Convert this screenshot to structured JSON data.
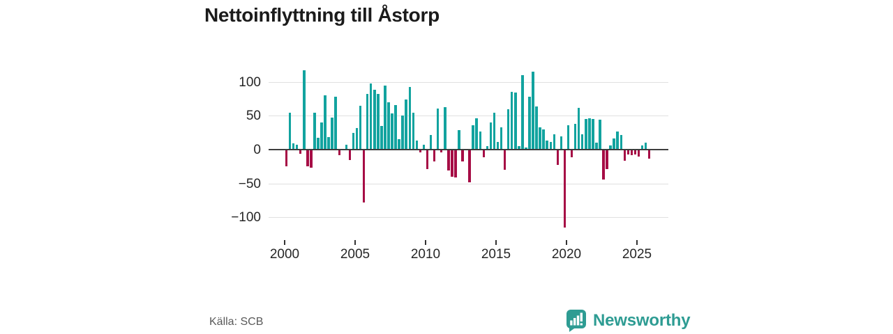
{
  "title": "Nettoinflyttning till Åstorp",
  "source": "Källa: SCB",
  "brand": {
    "name": "Newsworthy",
    "color": "#2e9c93"
  },
  "colors": {
    "positive_bar": "#12a39f",
    "negative_bar": "#a60c45",
    "gridline": "#e0e0e0",
    "zero_line": "#3d3d3d",
    "axis_text": "#262626",
    "title_text": "#1b1b1b",
    "source_text": "#595959"
  },
  "chart_data": {
    "type": "bar",
    "title": "Nettoinflyttning till Åstorp",
    "frequency": "quarterly",
    "start_period": "2000Q1",
    "end_period": "2025Q4",
    "values": [
      -25,
      55,
      9,
      7,
      -6,
      117,
      -25,
      -27,
      55,
      18,
      40,
      80,
      19,
      47,
      78,
      -8,
      0,
      7,
      -15,
      25,
      32,
      65,
      -78,
      82,
      98,
      88,
      82,
      35,
      95,
      70,
      53,
      66,
      15,
      50,
      74,
      93,
      55,
      13,
      -4,
      7,
      -29,
      22,
      -17,
      61,
      -4,
      63,
      -31,
      -40,
      -41,
      29,
      -17,
      0,
      -48,
      36,
      46,
      27,
      -11,
      5,
      40,
      55,
      11,
      33,
      -30,
      60,
      85,
      84,
      5,
      110,
      3,
      78,
      115,
      64,
      33,
      30,
      13,
      11,
      23,
      -23,
      20,
      -115,
      36,
      -11,
      38,
      62,
      23,
      45,
      46,
      45,
      10,
      44,
      -44,
      -29,
      6,
      17,
      27,
      22,
      -16,
      -7,
      -8,
      -7,
      -10,
      6,
      10,
      -13
    ],
    "xlabel": "",
    "ylabel": "",
    "x_ticks": [
      "2000",
      "2005",
      "2010",
      "2015",
      "2020",
      "2025"
    ],
    "x_tick_values": [
      2000,
      2005,
      2010,
      2015,
      2020,
      2025
    ],
    "y_ticks": [
      "100",
      "50",
      "0",
      "−50",
      "−100"
    ],
    "y_tick_values": [
      100,
      50,
      0,
      -50,
      -100
    ],
    "gridline_values": [
      100,
      50,
      -50,
      -100
    ],
    "ylim": [
      -125,
      128
    ],
    "grid": "horizontal-only",
    "legend": "none"
  }
}
